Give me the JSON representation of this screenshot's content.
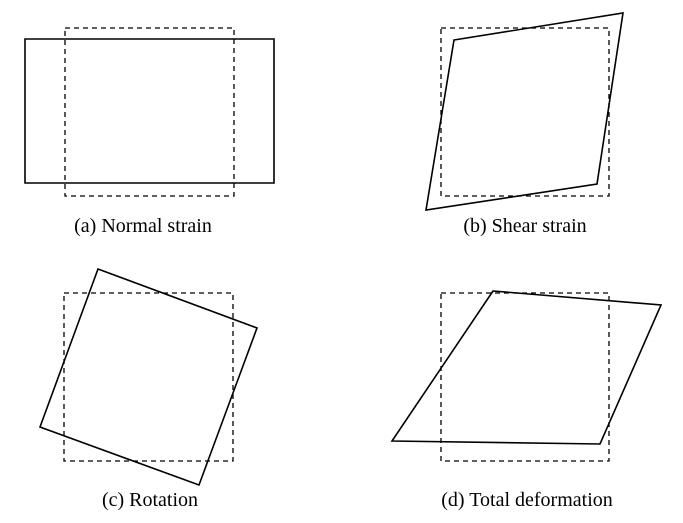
{
  "panels": [
    {
      "id": "a",
      "caption": "(a) Normal strain"
    },
    {
      "id": "b",
      "caption": "(b) Shear strain"
    },
    {
      "id": "c",
      "caption": "(c) Rotation"
    },
    {
      "id": "d",
      "caption": "(d) Total deformation"
    }
  ],
  "colors": {
    "stroke": "#000000",
    "background": "#ffffff"
  }
}
